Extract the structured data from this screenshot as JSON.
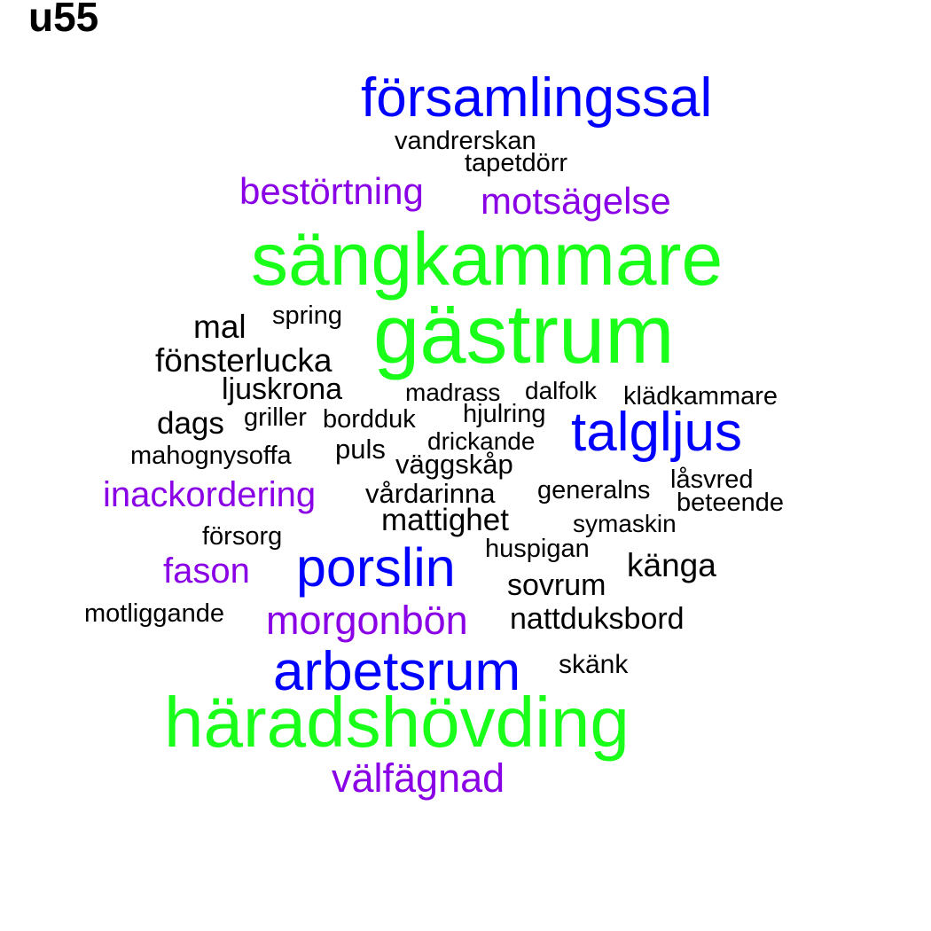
{
  "panel_label": "u55",
  "palette": {
    "tier1": "#1aff1a",
    "tier2": "#0000ff",
    "tier3": "#8a00e6",
    "tier4": "#000000"
  },
  "words": [
    {
      "text": "församlingssal",
      "tier": 2
    },
    {
      "text": "vandrerskan",
      "tier": 4
    },
    {
      "text": "tapetdörr",
      "tier": 4
    },
    {
      "text": "bestörtning",
      "tier": 3
    },
    {
      "text": "motsägelse",
      "tier": 3
    },
    {
      "text": "sängkammare",
      "tier": 1
    },
    {
      "text": "spring",
      "tier": 4
    },
    {
      "text": "mal",
      "tier": 4
    },
    {
      "text": "gästrum",
      "tier": 1
    },
    {
      "text": "fönsterlucka",
      "tier": 4
    },
    {
      "text": "ljuskrona",
      "tier": 4
    },
    {
      "text": "madrass",
      "tier": 4
    },
    {
      "text": "dalfolk",
      "tier": 4
    },
    {
      "text": "klädkammare",
      "tier": 4
    },
    {
      "text": "dags",
      "tier": 4
    },
    {
      "text": "griller",
      "tier": 4
    },
    {
      "text": "bordduk",
      "tier": 4
    },
    {
      "text": "hjulring",
      "tier": 4
    },
    {
      "text": "talgljus",
      "tier": 2
    },
    {
      "text": "drickande",
      "tier": 4
    },
    {
      "text": "mahognysoffa",
      "tier": 4
    },
    {
      "text": "puls",
      "tier": 4
    },
    {
      "text": "väggskåp",
      "tier": 4
    },
    {
      "text": "låsvred",
      "tier": 4
    },
    {
      "text": "inackordering",
      "tier": 3
    },
    {
      "text": "vårdarinna",
      "tier": 4
    },
    {
      "text": "generalns",
      "tier": 4
    },
    {
      "text": "beteende",
      "tier": 4
    },
    {
      "text": "mattighet",
      "tier": 4
    },
    {
      "text": "symaskin",
      "tier": 4
    },
    {
      "text": "försorg",
      "tier": 4
    },
    {
      "text": "huspigan",
      "tier": 4
    },
    {
      "text": "fason",
      "tier": 3
    },
    {
      "text": "porslin",
      "tier": 2
    },
    {
      "text": "känga",
      "tier": 4
    },
    {
      "text": "sovrum",
      "tier": 4
    },
    {
      "text": "motliggande",
      "tier": 4
    },
    {
      "text": "morgonbön",
      "tier": 3
    },
    {
      "text": "nattduksbord",
      "tier": 4
    },
    {
      "text": "arbetsrum",
      "tier": 2
    },
    {
      "text": "skänk",
      "tier": 4
    },
    {
      "text": "häradshövding",
      "tier": 1
    },
    {
      "text": "välfägnad",
      "tier": 3
    }
  ]
}
